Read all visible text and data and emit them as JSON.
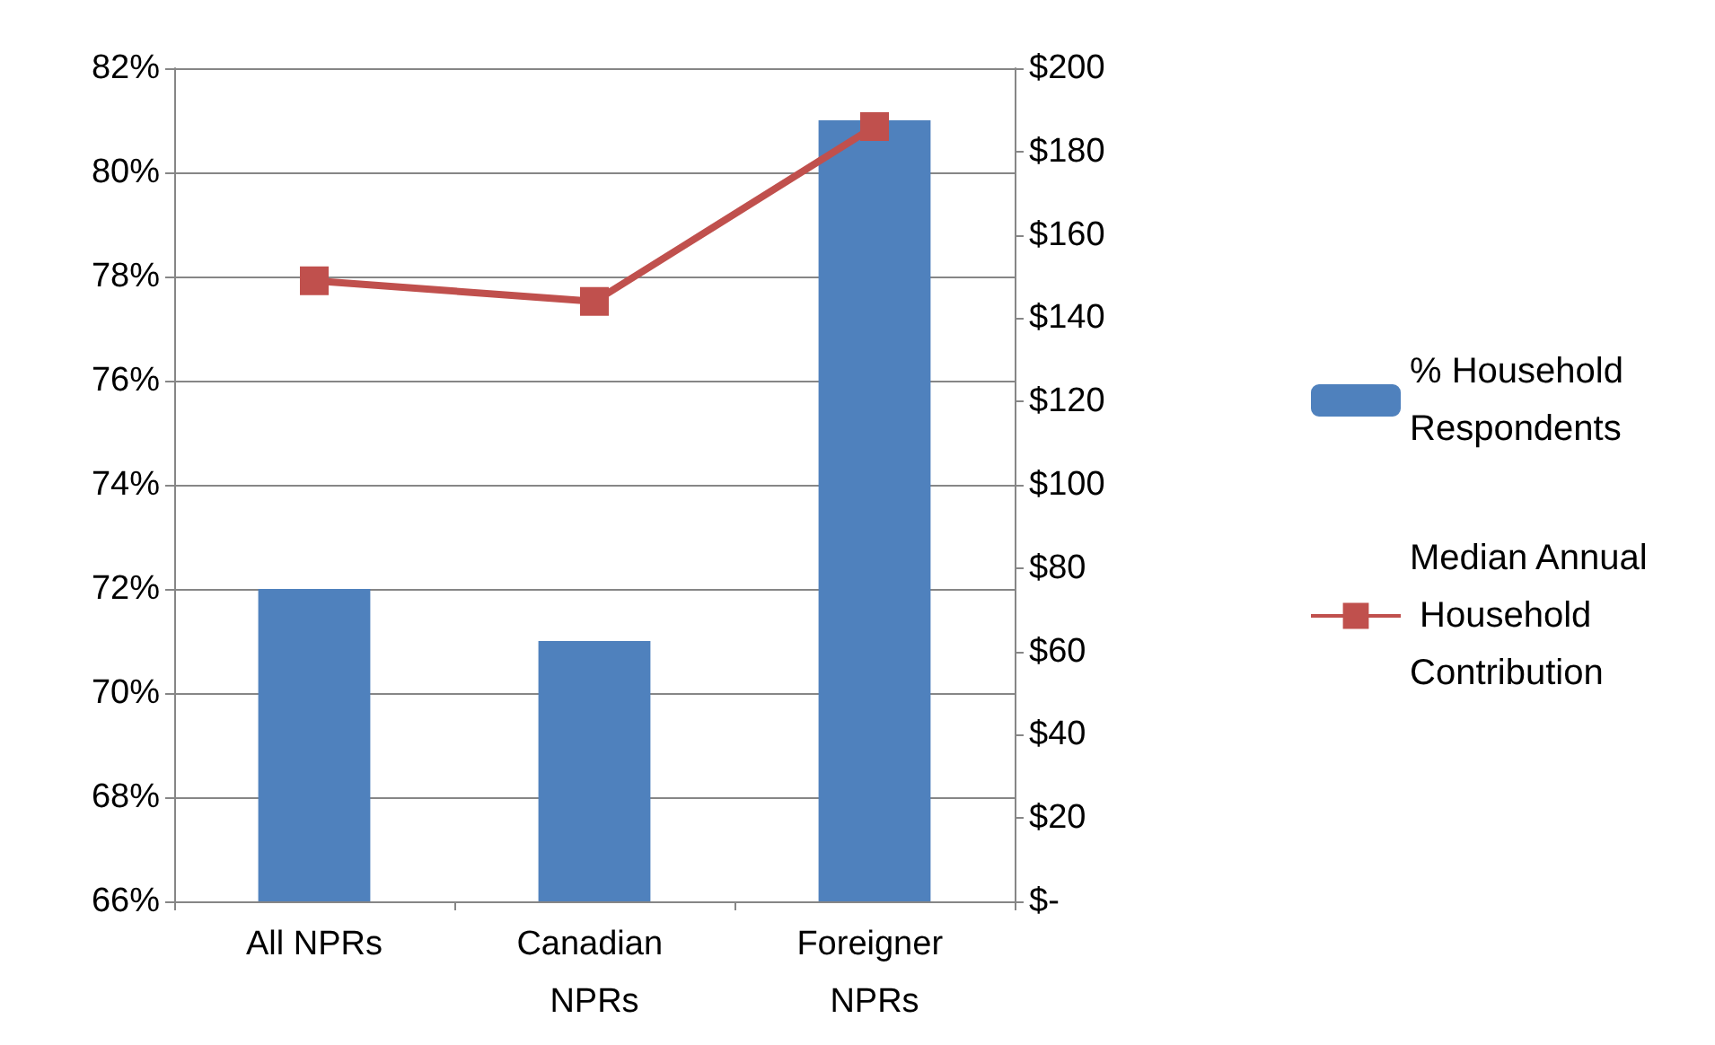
{
  "chart_data": {
    "type": "bar",
    "categories": [
      "All NPRs",
      "Canadian NPRs",
      "Foreigner NPRs"
    ],
    "series": [
      {
        "name": "% Household Respondents",
        "color": "#4f81bd",
        "values": [
          72,
          71,
          81
        ]
      },
      {
        "name": "Median Annual Household Contribution",
        "type": "line",
        "axis": "y2",
        "color": "#c0504d",
        "values": [
          149,
          144,
          186
        ]
      }
    ],
    "ylim": [
      66,
      82
    ],
    "yticks": [
      {
        "value": 66,
        "label": "66%"
      },
      {
        "value": 68,
        "label": "68%"
      },
      {
        "value": 70,
        "label": "70%"
      },
      {
        "value": 72,
        "label": "72%"
      },
      {
        "value": 74,
        "label": "74%"
      },
      {
        "value": 76,
        "label": "76%"
      },
      {
        "value": 78,
        "label": "78%"
      },
      {
        "value": 80,
        "label": "80%"
      },
      {
        "value": 82,
        "label": "82%"
      }
    ],
    "y2lim": [
      0,
      200
    ],
    "y2ticks": [
      {
        "value": 0,
        "label": "$-"
      },
      {
        "value": 20,
        "label": "$20"
      },
      {
        "value": 40,
        "label": "$40"
      },
      {
        "value": 60,
        "label": "$60"
      },
      {
        "value": 80,
        "label": "$80"
      },
      {
        "value": 100,
        "label": "$100"
      },
      {
        "value": 120,
        "label": "$120"
      },
      {
        "value": 140,
        "label": "$140"
      },
      {
        "value": 160,
        "label": "$160"
      },
      {
        "value": 180,
        "label": "$180"
      },
      {
        "value": 200,
        "label": "$200"
      }
    ],
    "grid": "y",
    "legend": "right",
    "marker": "square",
    "line_style": "solid"
  }
}
